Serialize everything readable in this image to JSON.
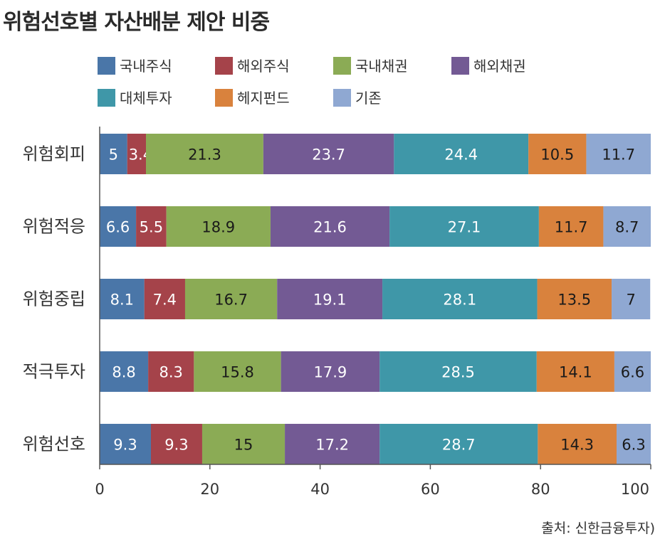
{
  "chart_data": {
    "type": "bar",
    "orientation": "horizontal",
    "stacked": true,
    "title": "위험선호별 자산배분 제안 비중",
    "source": "출처: 신한금융투자)",
    "categories": [
      "위험회피",
      "위험적응",
      "위험중립",
      "적극투자",
      "위험선호"
    ],
    "series": [
      {
        "name": "국내주식",
        "color": "#4a76a8",
        "values": [
          5,
          6.6,
          8.1,
          8.8,
          9.3
        ]
      },
      {
        "name": "해외주식",
        "color": "#a5434a",
        "values": [
          3.4,
          5.5,
          7.4,
          8.3,
          9.3
        ]
      },
      {
        "name": "국내채권",
        "color": "#8bab55",
        "values": [
          21.3,
          18.9,
          16.7,
          15.8,
          15
        ]
      },
      {
        "name": "해외채권",
        "color": "#735a94",
        "values": [
          23.7,
          21.6,
          19.1,
          17.9,
          17.2
        ]
      },
      {
        "name": "대체투자",
        "color": "#3f97a8",
        "values": [
          24.4,
          27.1,
          28.1,
          28.5,
          28.7
        ]
      },
      {
        "name": "헤지펀드",
        "color": "#d9823d",
        "values": [
          10.5,
          11.7,
          13.5,
          14.1,
          14.3
        ]
      },
      {
        "name": "기존",
        "color": "#8fa8d2",
        "values": [
          11.7,
          8.7,
          7,
          6.6,
          6.3
        ]
      }
    ],
    "xlim": [
      0,
      100
    ],
    "xticks": [
      0,
      20,
      40,
      60,
      80,
      100
    ],
    "grid": false,
    "legend_position": "top"
  }
}
